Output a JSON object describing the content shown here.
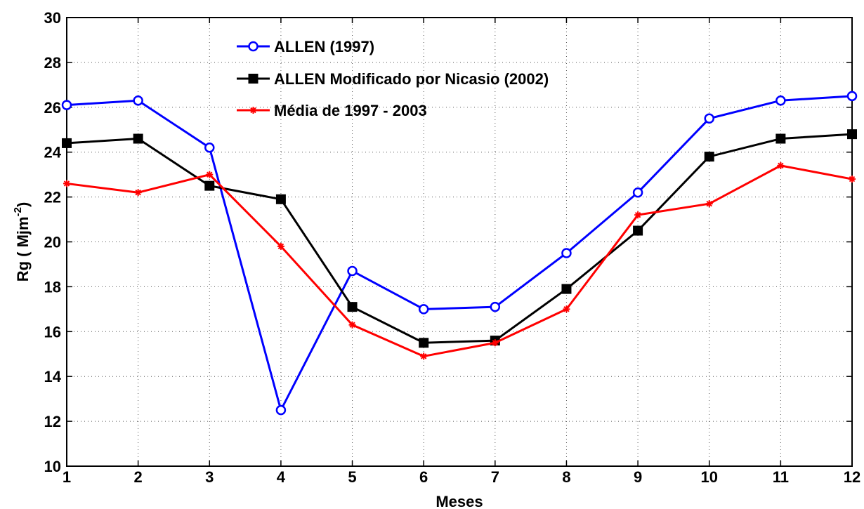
{
  "chart_data": {
    "type": "line",
    "xlabel": "Meses",
    "ylabel": "Rg ( Mjm",
    "ylabel_superscript": "-2",
    "ylabel_suffix": ")",
    "xlim": [
      1,
      12
    ],
    "ylim": [
      10,
      30
    ],
    "x_ticks": [
      1,
      2,
      3,
      4,
      5,
      6,
      7,
      8,
      9,
      10,
      11,
      12
    ],
    "y_ticks": [
      10,
      12,
      14,
      16,
      18,
      20,
      22,
      24,
      26,
      28,
      30
    ],
    "grid": true,
    "legend_position": "top-left",
    "x": [
      1,
      2,
      3,
      4,
      5,
      6,
      7,
      8,
      9,
      10,
      11,
      12
    ],
    "series": [
      {
        "name": "ALLEN (1997)",
        "color": "#0000ff",
        "marker": "open-circle",
        "values": [
          26.1,
          26.3,
          24.2,
          12.5,
          18.7,
          17.0,
          17.1,
          19.5,
          22.2,
          25.5,
          26.3,
          26.5
        ]
      },
      {
        "name": "ALLEN Modificado por Nicasio (2002)",
        "color": "#000000",
        "marker": "filled-square",
        "values": [
          24.4,
          24.6,
          22.5,
          21.9,
          17.1,
          15.5,
          15.6,
          17.9,
          20.5,
          23.8,
          24.6,
          24.8
        ]
      },
      {
        "name": "Média de 1997 - 2003",
        "color": "#ff0000",
        "marker": "asterisk",
        "values": [
          22.6,
          22.2,
          23.0,
          19.8,
          16.3,
          14.9,
          15.5,
          17.0,
          21.2,
          21.7,
          23.4,
          22.8
        ]
      }
    ]
  }
}
